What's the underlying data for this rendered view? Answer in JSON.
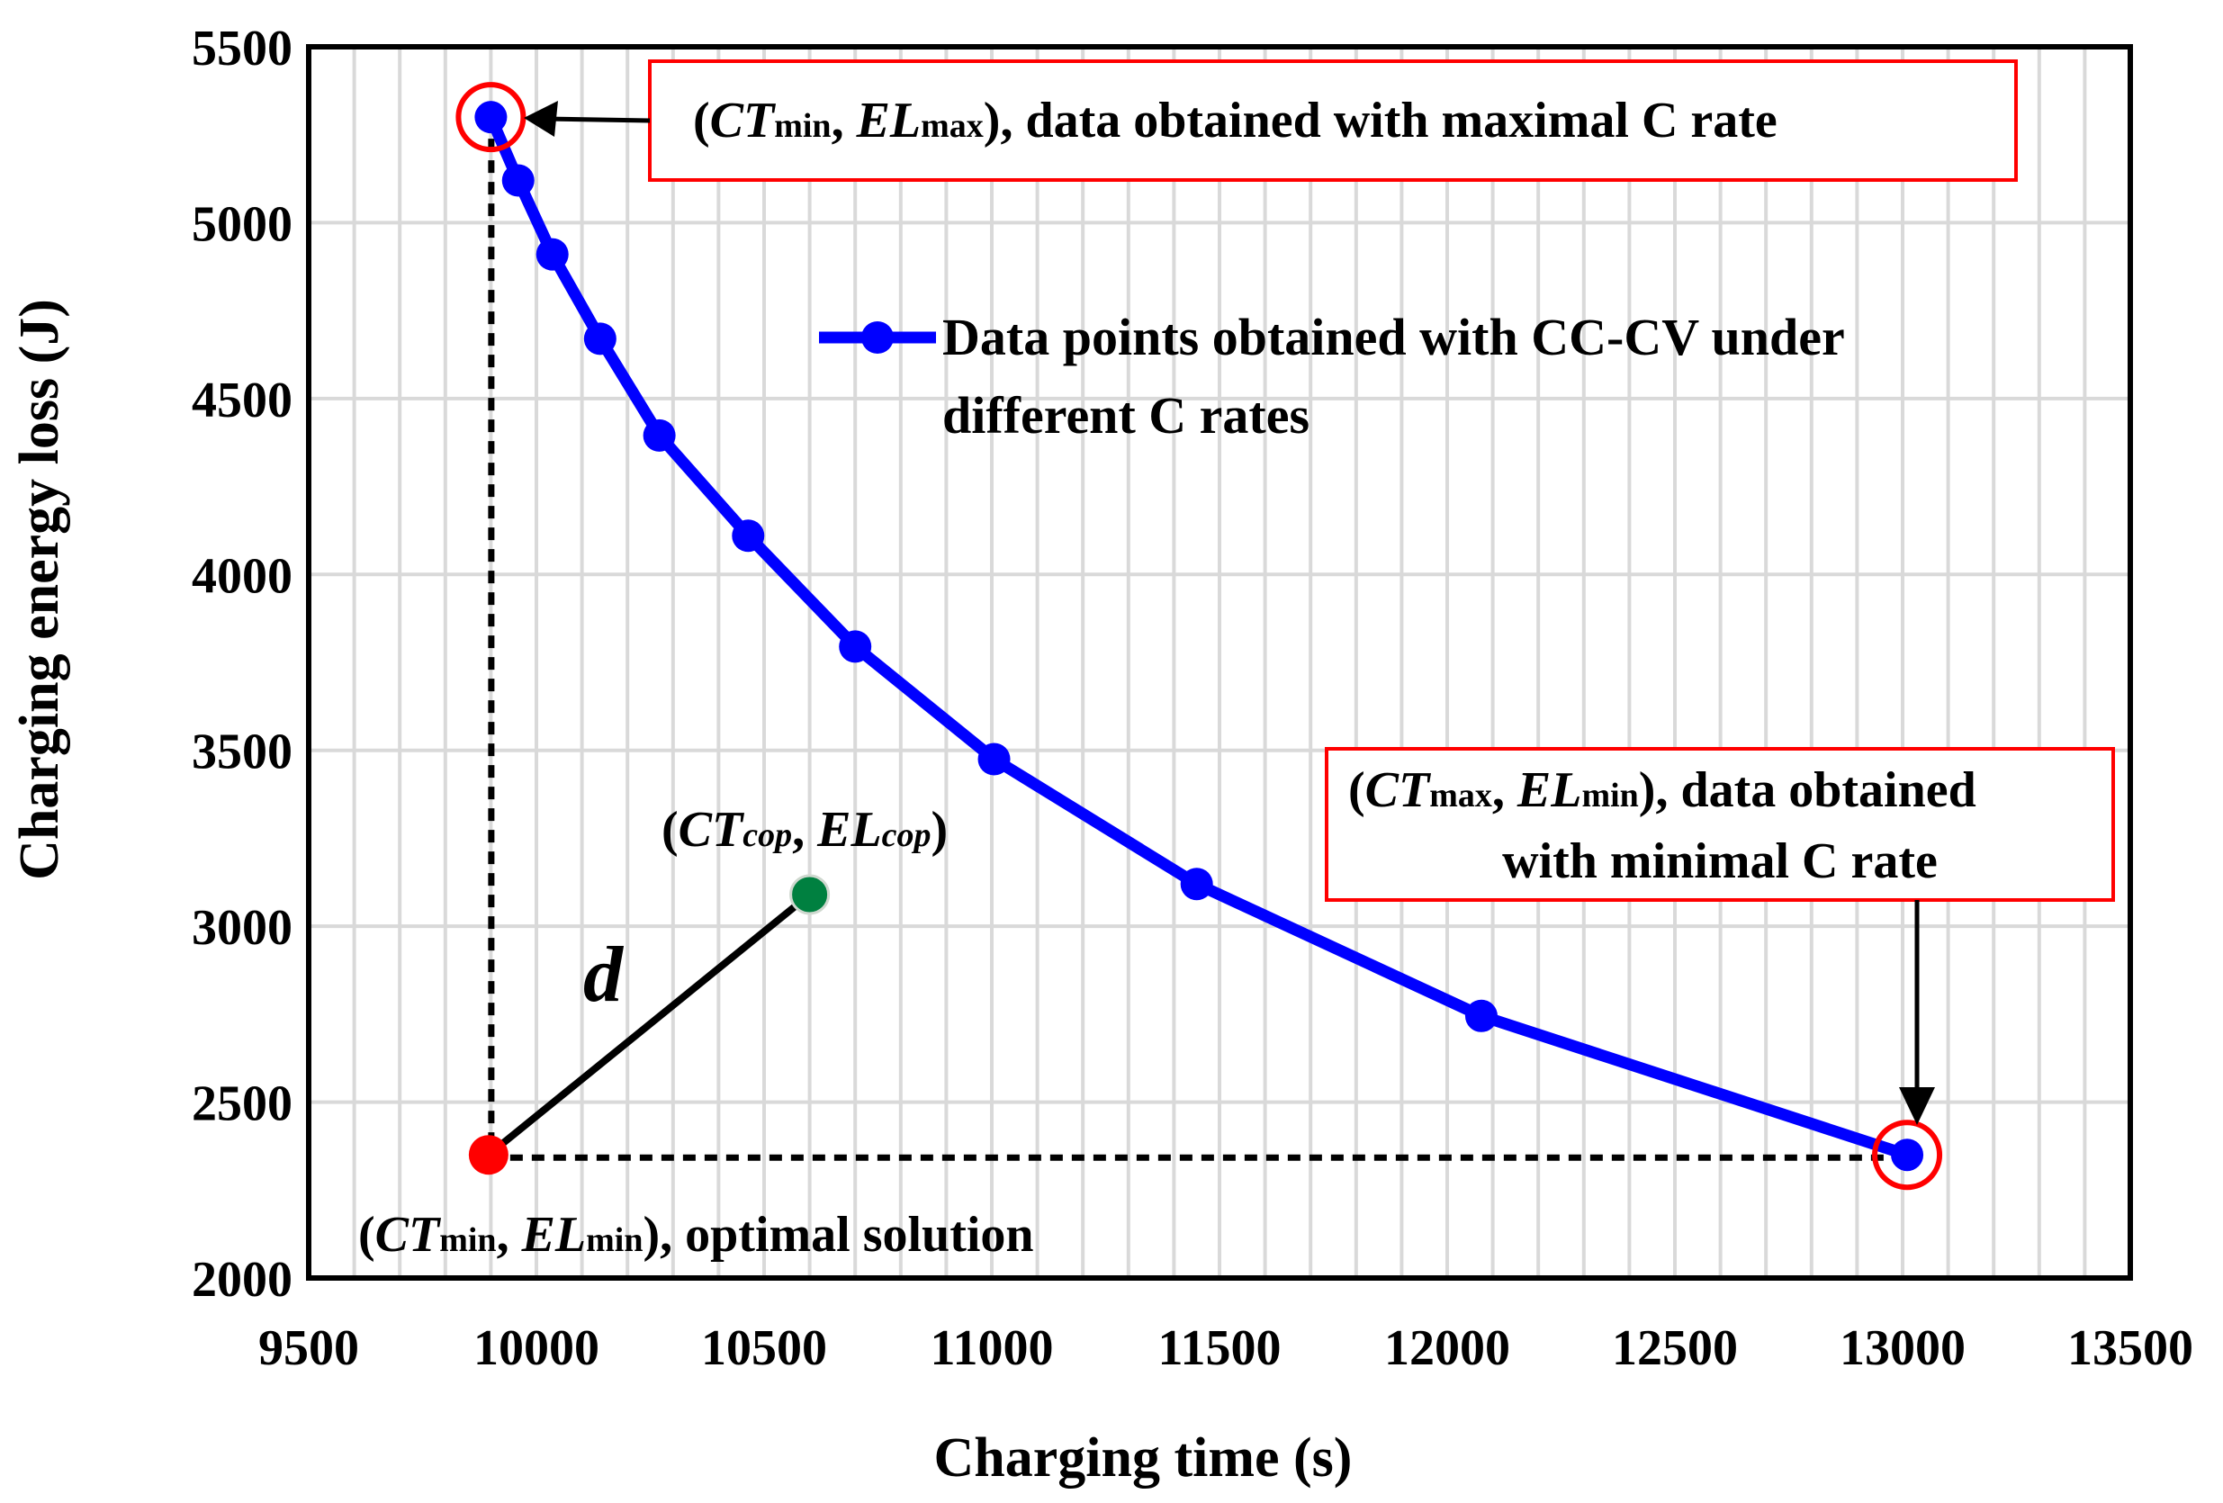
{
  "chart_data": {
    "type": "line",
    "title": "",
    "xlabel": "Charging time (s)",
    "ylabel": "Charging energy loss (J)",
    "xlim": [
      9500,
      13500
    ],
    "ylim": [
      2000,
      5500
    ],
    "xticks": [
      9500,
      10000,
      10500,
      11000,
      11500,
      12000,
      12500,
      13000,
      13500
    ],
    "yticks": [
      2000,
      2500,
      3000,
      3500,
      4000,
      4500,
      5000,
      5500
    ],
    "grid": true,
    "series": [
      {
        "name": "Data points obtained with CC-CV under different C rates",
        "color": "#0000ff",
        "x": [
          9900,
          9960,
          10035,
          10140,
          10270,
          10465,
          10700,
          11005,
          11450,
          12075,
          13010
        ],
        "y": [
          5300,
          5120,
          4910,
          4670,
          4395,
          4110,
          3795,
          3475,
          3120,
          2745,
          2350
        ]
      }
    ],
    "legend": {
      "position": "upper-right-inside",
      "line1": "Data points obtained with CC-CV under",
      "line2": "different C rates"
    },
    "special_points": {
      "max_rate": {
        "x": 9900,
        "y": 5300,
        "ring_color": "#ff0000"
      },
      "min_rate": {
        "x": 13010,
        "y": 2350,
        "ring_color": "#ff0000"
      },
      "optimal": {
        "x": 9895,
        "y": 2350,
        "color": "#ff0000"
      },
      "cop": {
        "x": 10600,
        "y": 3090,
        "color": "#008040"
      }
    },
    "annotations": {
      "max_box": {
        "open": "(",
        "ct": "CT",
        "ct_sub": "min",
        "sep": ", ",
        "el": "EL",
        "el_sub": "max",
        "rest": "), data obtained with maximal C rate",
        "border_color": "#ff0000"
      },
      "min_box": {
        "open": "(",
        "ct": "CT",
        "ct_sub": "max",
        "sep": ", ",
        "el": "EL",
        "el_sub": "min",
        "rest": "), data obtained",
        "line2": "with minimal C rate",
        "border_color": "#ff0000"
      },
      "cop_label": {
        "open": "(",
        "ct": "CT",
        "ct_sub": "cop",
        "sep": ", ",
        "el": "EL",
        "el_sub": "cop",
        "close": ")"
      },
      "optimal_label": {
        "open": "(",
        "ct": "CT",
        "ct_sub": "min",
        "sep": ", ",
        "el": "EL",
        "el_sub": "min",
        "rest": "), optimal solution"
      },
      "distance_label": "d"
    }
  }
}
